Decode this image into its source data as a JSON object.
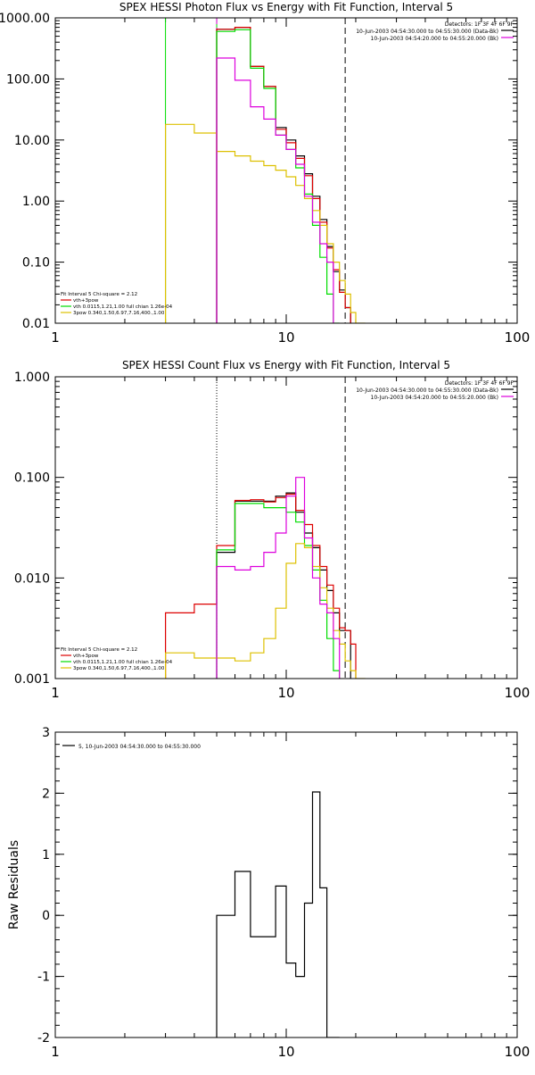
{
  "colors": {
    "black": "#000000",
    "red": "#dd0000",
    "green": "#00dd00",
    "magenta": "#dd00dd",
    "yellow": "#ddc000"
  },
  "chart_data": [
    {
      "type": "line",
      "title": "SPEX HESSI Photon Flux vs Energy with Fit Function, Interval 5",
      "xlabel": "",
      "ylabel": "",
      "xscale": "log",
      "yscale": "log",
      "xlim": [
        1,
        100
      ],
      "ylim": [
        0.01,
        1000
      ],
      "x_ticks": [
        1,
        10,
        100
      ],
      "x_tick_labels": [
        "1",
        "10",
        "100"
      ],
      "y_ticks": [
        0.01,
        0.1,
        1,
        10,
        100,
        1000
      ],
      "y_tick_labels": [
        "0.01",
        "0.10",
        "1.00",
        "10.00",
        "100.00",
        "1000.00"
      ],
      "legend_top": [
        "Detectors: 1F 3F 4F 6F 9F",
        "10-Jun-2003 04:54:30.000 to 04:55:30.000 (Data-Bk)",
        "10-Jun-2003 04:54:20.000 to 04:55:20.000 (Bk)"
      ],
      "legend_top_colors": [
        "",
        "#000000",
        "#dd00dd"
      ],
      "legend_top_position": "top-right",
      "legend_bottom": [
        "Fit Interval 5   Chi-square = 2.12",
        "vth+3pow",
        "vth 0.0115,1.21,1.00  full chian 1.26e-04",
        "3pow 0.340,1.50,6.97,7.16,400.,1.00"
      ],
      "legend_bottom_colors": [
        "",
        "#dd0000",
        "#00dd00",
        "#ddc000"
      ],
      "legend_bottom_position": "bottom-left",
      "vlines": [
        {
          "x": 3.0,
          "color": "#00dd00",
          "style": "solid"
        },
        {
          "x": 5.0,
          "color": "#00dd00",
          "style": "solid"
        },
        {
          "x": 5.0,
          "color": "#dd00dd",
          "style": "dashed"
        },
        {
          "x": 18.0,
          "color": "#000000",
          "style": "dashed"
        }
      ],
      "edges": [
        3,
        4,
        5,
        6,
        7,
        8,
        9,
        10,
        11,
        12,
        13,
        14,
        15,
        16,
        17,
        18,
        19,
        20,
        22
      ],
      "series": [
        {
          "name": "Data-Bk",
          "color": "#000000",
          "values": [
            null,
            null,
            650,
            700,
            160,
            75,
            16,
            10,
            5.5,
            2.8,
            1.2,
            0.5,
            0.18,
            0.07,
            0.035,
            0.018,
            null,
            null
          ]
        },
        {
          "name": "vth+3pow",
          "color": "#dd0000",
          "values": [
            null,
            null,
            650,
            700,
            160,
            75,
            15,
            9,
            5,
            2.6,
            1.1,
            0.45,
            0.17,
            0.075,
            0.032,
            0.018,
            null,
            null
          ]
        },
        {
          "name": "vth",
          "color": "#00dd00",
          "values": [
            null,
            null,
            600,
            640,
            150,
            70,
            12,
            7,
            3.5,
            1.3,
            0.4,
            0.12,
            0.03,
            0.009,
            null,
            null,
            null,
            null
          ]
        },
        {
          "name": "3pow",
          "color": "#ddc000",
          "values": [
            18,
            13,
            6.5,
            5.5,
            4.5,
            3.8,
            3.2,
            2.5,
            1.8,
            1.1,
            0.7,
            0.4,
            0.2,
            0.1,
            0.05,
            0.03,
            0.015,
            0.01
          ]
        },
        {
          "name": "Bk",
          "color": "#dd00dd",
          "values": [
            null,
            null,
            220,
            95,
            35,
            22,
            12,
            7,
            4,
            1.2,
            0.45,
            0.2,
            0.1,
            null,
            null,
            null,
            null,
            null
          ]
        }
      ]
    },
    {
      "type": "line",
      "title": "SPEX HESSI Count Flux vs Energy with Fit Function, Interval 5",
      "xlabel": "",
      "ylabel": "",
      "xscale": "log",
      "yscale": "log",
      "xlim": [
        1,
        100
      ],
      "ylim": [
        0.001,
        1
      ],
      "x_ticks": [
        1,
        10,
        100
      ],
      "x_tick_labels": [
        "1",
        "10",
        "100"
      ],
      "y_ticks": [
        0.001,
        0.01,
        0.1,
        1
      ],
      "y_tick_labels": [
        "0.001",
        "0.010",
        "0.100",
        "1.000"
      ],
      "legend_top": [
        "Detectors: 1F 3F 4F 6F 9F",
        "10-Jun-2003 04:54:30.000 to 04:55:30.000 (Data-Bk)",
        "10-Jun-2003 04:54:20.000 to 04:55:20.000 (Bk)"
      ],
      "legend_top_colors": [
        "",
        "#000000",
        "#dd00dd"
      ],
      "legend_top_position": "top-right",
      "legend_bottom": [
        "Fit Interval 5   Chi-square = 2.12",
        "vth+3pow",
        "vth 0.0115,1.21,1.00  full chian 1.26e-04",
        "3pow 0.340,1.50,6.97,7.16,400.,1.00"
      ],
      "legend_bottom_colors": [
        "",
        "#dd0000",
        "#00dd00",
        "#ddc000"
      ],
      "legend_bottom_position": "bottom-left",
      "vlines": [
        {
          "x": 5.0,
          "color": "#000000",
          "style": "dotted"
        },
        {
          "x": 18.0,
          "color": "#000000",
          "style": "dashed"
        }
      ],
      "edges": [
        3,
        4,
        5,
        6,
        7,
        8,
        9,
        10,
        11,
        12,
        13,
        14,
        15,
        16,
        17,
        18,
        19,
        20,
        22
      ],
      "series": [
        {
          "name": "Data-Bk",
          "color": "#000000",
          "values": [
            null,
            null,
            0.018,
            0.058,
            0.058,
            0.058,
            0.065,
            0.07,
            0.045,
            0.028,
            0.02,
            0.012,
            0.0075,
            0.0045,
            0.003,
            0.003,
            null,
            null
          ]
        },
        {
          "name": "vth+3pow",
          "color": "#dd0000",
          "values": [
            0.0045,
            0.0055,
            0.021,
            0.059,
            0.06,
            0.057,
            0.063,
            0.068,
            0.047,
            0.034,
            0.021,
            0.013,
            0.0085,
            0.005,
            0.0032,
            0.003,
            0.0022,
            null
          ]
        },
        {
          "name": "vth",
          "color": "#00dd00",
          "values": [
            null,
            null,
            0.019,
            0.055,
            0.055,
            0.05,
            0.05,
            0.045,
            0.036,
            0.021,
            0.012,
            0.006,
            0.0025,
            0.0012,
            null,
            null,
            null,
            null
          ]
        },
        {
          "name": "3pow",
          "color": "#ddc000",
          "values": [
            0.0018,
            0.0016,
            0.0016,
            0.0015,
            0.0018,
            0.0025,
            0.005,
            0.014,
            0.022,
            0.02,
            0.013,
            0.008,
            0.005,
            0.003,
            0.0022,
            0.0015,
            0.0012,
            0.001
          ]
        },
        {
          "name": "Bk",
          "color": "#dd00dd",
          "values": [
            null,
            null,
            0.013,
            0.012,
            0.013,
            0.018,
            0.028,
            0.065,
            0.1,
            0.025,
            0.01,
            0.0055,
            0.0045,
            0.0025,
            null,
            null,
            null,
            null
          ]
        }
      ]
    },
    {
      "type": "line",
      "title": "",
      "xlabel": "",
      "ylabel": "Raw Residuals",
      "xscale": "log",
      "yscale": "linear",
      "xlim": [
        1,
        100
      ],
      "ylim": [
        -2,
        3
      ],
      "x_ticks": [
        1,
        10,
        100
      ],
      "x_tick_labels": [
        "1",
        "10",
        "100"
      ],
      "y_ticks": [
        -2,
        -1,
        0,
        1,
        2,
        3
      ],
      "y_tick_labels": [
        "-2",
        "-1",
        "0",
        "1",
        "2",
        "3"
      ],
      "legend_top": [
        "5, 10-Jun-2003 04:54:30.000 to 04:55:30.000"
      ],
      "legend_top_colors": [
        "#000000"
      ],
      "legend_top_position": "top-left",
      "edges": [
        5,
        6,
        7,
        8,
        9,
        10,
        11,
        12,
        13,
        14,
        15,
        16,
        17
      ],
      "series": [
        {
          "name": "5, 10-Jun-2003 04:54:30.000 to 04:55:30.000",
          "color": "#000000",
          "values": [
            0,
            0.72,
            -0.35,
            -0.35,
            0.48,
            -0.78,
            -1.0,
            0.2,
            2.02,
            0.45,
            -2.0,
            -2.0
          ]
        }
      ]
    }
  ]
}
